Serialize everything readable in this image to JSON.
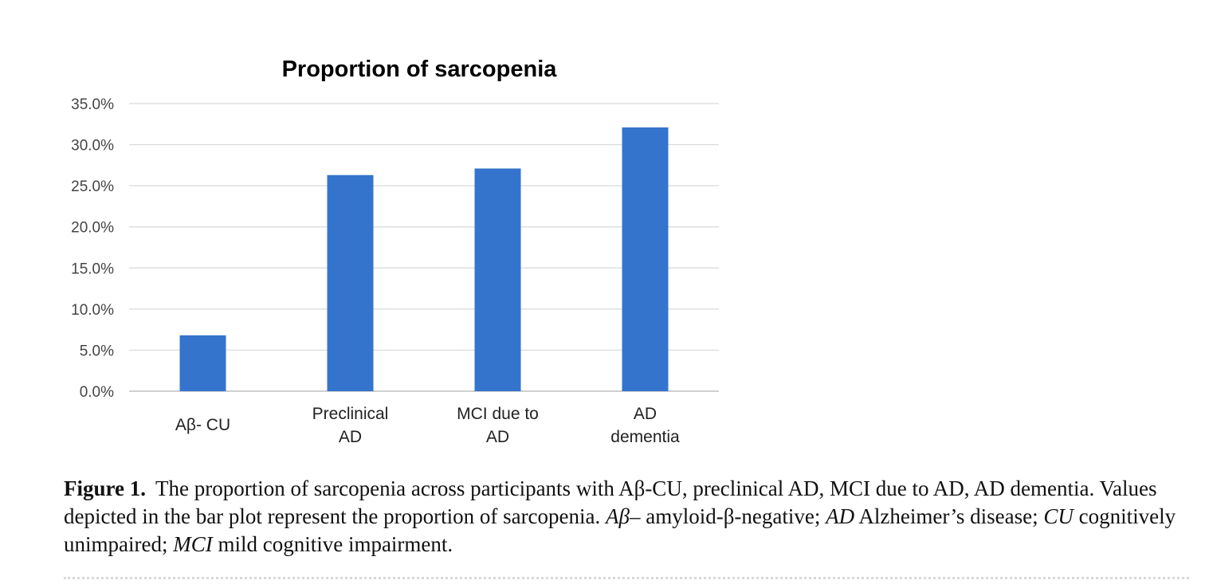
{
  "chart_data": {
    "type": "bar",
    "title": "Proportion of sarcopenia",
    "categories": [
      [
        "Aβ- CU"
      ],
      [
        "Preclinical",
        "AD"
      ],
      [
        "MCI due to",
        "AD"
      ],
      [
        "AD",
        "dementia"
      ]
    ],
    "values": [
      6.8,
      26.3,
      27.1,
      32.1
    ],
    "value_unit": "%",
    "ylim": [
      0,
      35
    ],
    "yticks": [
      "0.0%",
      "5.0%",
      "10.0%",
      "15.0%",
      "20.0%",
      "25.0%",
      "30.0%",
      "35.0%"
    ],
    "grid": true,
    "legend": "none",
    "bar_color": "#3474cc",
    "grid_color": "#d9d9d9"
  },
  "caption": {
    "label": "Figure 1.",
    "text1": "The proportion of sarcopenia across participants with Aβ-CU, preclinical AD, MCI due to AD, AD dementia. Values depicted in the bar plot represent the proportion of sarcopenia. ",
    "abbr1": "Aβ–",
    "def1": " amyloid-β-negative; ",
    "abbr2": "AD",
    "def2": " Alzheimer’s disease; ",
    "abbr3": "CU",
    "def3": " cognitively unimpaired; ",
    "abbr4": "MCI",
    "def4": " mild cognitive impairment."
  }
}
